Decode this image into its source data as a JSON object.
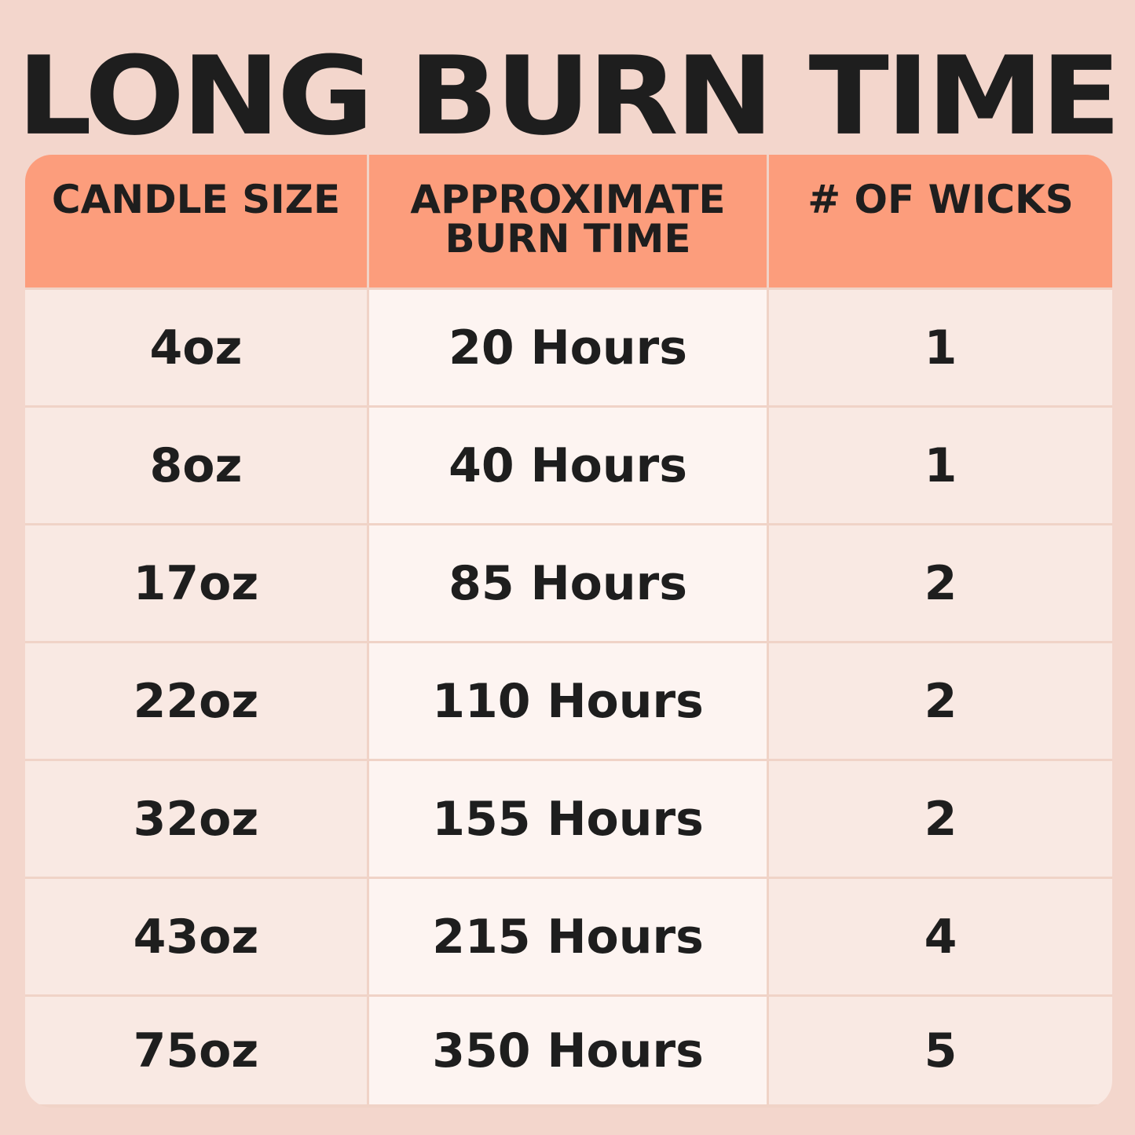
{
  "title": "LONG BURN TIME",
  "colors": {
    "background": "#f3d6cc",
    "header": "#fc9d7c",
    "cell": "#f9e9e3",
    "cell_alt": "#fdf4f1",
    "text": "#1e1e1e"
  },
  "chart_data": {
    "type": "table",
    "title": "LONG BURN TIME",
    "columns": [
      "CANDLE SIZE",
      "APPROXIMATE BURN TIME",
      "# OF WICKS"
    ],
    "rows": [
      [
        "4oz",
        "20 Hours",
        "1"
      ],
      [
        "8oz",
        "40 Hours",
        "1"
      ],
      [
        "17oz",
        "85 Hours",
        "2"
      ],
      [
        "22oz",
        "110 Hours",
        "2"
      ],
      [
        "32oz",
        "155 Hours",
        "2"
      ],
      [
        "43oz",
        "215 Hours",
        "4"
      ],
      [
        "75oz",
        "350 Hours",
        "5"
      ]
    ]
  }
}
